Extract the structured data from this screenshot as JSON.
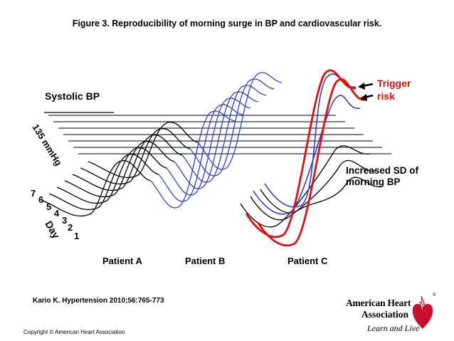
{
  "title": "Figure 3. Reproducibility of morning surge in BP and cardiovascular risk.",
  "labels": {
    "systolic_bp": "Systolic BP",
    "threshold": "135 mmHg",
    "day": "Day",
    "days": [
      "1",
      "2",
      "3",
      "4",
      "5",
      "6",
      "7"
    ],
    "trigger_line1": "Trigger",
    "trigger_line2": "risk",
    "increased_sd_line1": "Increased SD of",
    "increased_sd_line2": "morning BP",
    "patient_a": "Patient A",
    "patient_b": "Patient  B",
    "patient_c": "Patient C"
  },
  "colors": {
    "patient_a": "#000000",
    "patient_b": "#2a3fd6",
    "patient_c_red": "#e01010",
    "patient_c_blue": "#2a3fd6",
    "patient_c_black": "#000000",
    "trigger_text": "#e01010",
    "logo_red": "#c8102e"
  },
  "citation": "Kario K. Hypertension 2010;56:765-773",
  "copyright": "Copyright © American Heart Association",
  "logo": {
    "name_line1": "American Heart",
    "name_line2": "Association",
    "tagline": "Learn and Live",
    "registered": "®",
    "icon": "heart-torch-icon"
  }
}
